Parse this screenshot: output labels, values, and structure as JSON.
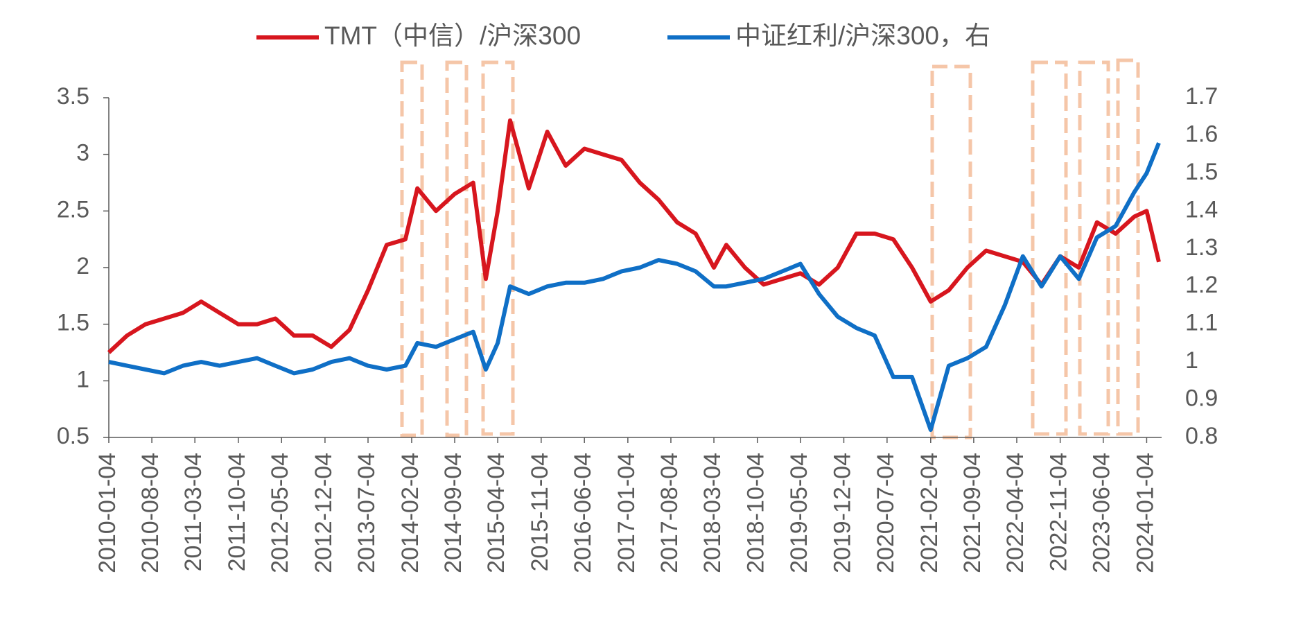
{
  "chart_data": {
    "type": "line",
    "x": [
      "2010-01-04",
      "2010-04-04",
      "2010-07-04",
      "2010-10-04",
      "2011-01-04",
      "2011-04-04",
      "2011-07-04",
      "2011-10-04",
      "2012-01-04",
      "2012-04-04",
      "2012-07-04",
      "2012-10-04",
      "2013-01-04",
      "2013-04-04",
      "2013-07-04",
      "2013-10-04",
      "2014-01-04",
      "2014-03-04",
      "2014-06-04",
      "2014-09-04",
      "2014-12-04",
      "2015-02-04",
      "2015-04-04",
      "2015-06-04",
      "2015-09-04",
      "2015-12-04",
      "2016-03-04",
      "2016-06-04",
      "2016-09-04",
      "2016-12-04",
      "2017-03-04",
      "2017-06-04",
      "2017-09-04",
      "2017-12-04",
      "2018-03-04",
      "2018-05-04",
      "2018-08-04",
      "2018-11-04",
      "2019-02-04",
      "2019-05-04",
      "2019-08-04",
      "2019-11-04",
      "2020-02-04",
      "2020-05-04",
      "2020-08-04",
      "2020-11-04",
      "2021-02-04",
      "2021-05-04",
      "2021-08-04",
      "2021-11-04",
      "2022-02-04",
      "2022-05-04",
      "2022-08-04",
      "2022-11-04",
      "2023-02-04",
      "2023-05-04",
      "2023-08-04",
      "2023-11-04",
      "2024-01-04",
      "2024-03-04"
    ],
    "series": [
      {
        "name": "TMT（中信）/沪深300",
        "color": "#d7161e",
        "values": [
          1.25,
          1.4,
          1.5,
          1.55,
          1.6,
          1.7,
          1.6,
          1.5,
          1.5,
          1.55,
          1.4,
          1.4,
          1.3,
          1.45,
          1.8,
          2.2,
          2.25,
          2.7,
          2.5,
          2.65,
          2.75,
          1.9,
          2.5,
          3.3,
          2.7,
          3.2,
          2.9,
          3.05,
          3.0,
          2.95,
          2.75,
          2.6,
          2.4,
          2.3,
          2.0,
          2.2,
          2.0,
          1.85,
          1.9,
          1.95,
          1.85,
          2.0,
          2.3,
          2.3,
          2.25,
          2.0,
          1.7,
          1.8,
          2.0,
          2.15,
          2.1,
          2.05,
          1.85,
          2.1,
          2.0,
          2.4,
          2.3,
          2.45,
          2.5,
          2.05
        ]
      },
      {
        "name": "中证红利/沪深300，右",
        "color": "#0f6fc6",
        "axis": "y2",
        "values": [
          1.0,
          0.99,
          0.98,
          0.97,
          0.99,
          1.0,
          0.99,
          1.0,
          1.01,
          0.99,
          0.97,
          0.98,
          1.0,
          1.01,
          0.99,
          0.98,
          0.99,
          1.05,
          1.04,
          1.06,
          1.08,
          0.98,
          1.05,
          1.2,
          1.18,
          1.2,
          1.21,
          1.21,
          1.22,
          1.24,
          1.25,
          1.27,
          1.26,
          1.24,
          1.2,
          1.2,
          1.21,
          1.22,
          1.24,
          1.26,
          1.18,
          1.12,
          1.09,
          1.07,
          0.96,
          0.96,
          0.82,
          0.99,
          1.01,
          1.04,
          1.15,
          1.28,
          1.2,
          1.28,
          1.22,
          1.33,
          1.36,
          1.45,
          1.5,
          1.58
        ]
      }
    ],
    "xlim": [
      "2010-01-04",
      "2024-03-04"
    ],
    "xticks": [
      "2010-01-04",
      "2010-08-04",
      "2011-03-04",
      "2011-10-04",
      "2012-05-04",
      "2012-12-04",
      "2013-07-04",
      "2014-02-04",
      "2014-09-04",
      "2015-04-04",
      "2015-11-04",
      "2016-06-04",
      "2017-01-04",
      "2017-08-04",
      "2018-03-04",
      "2018-10-04",
      "2019-05-04",
      "2019-12-04",
      "2020-07-04",
      "2021-02-04",
      "2021-09-04",
      "2022-04-04",
      "2022-11-04",
      "2023-06-04",
      "2024-01-04"
    ],
    "ylim": [
      0.5,
      3.5
    ],
    "yticks": [
      0.5,
      1,
      1.5,
      2,
      2.5,
      3,
      3.5
    ],
    "y2lim": [
      0.8,
      1.7
    ],
    "y2ticks": [
      0.8,
      0.9,
      1,
      1.1,
      1.2,
      1.3,
      1.4,
      1.5,
      1.6,
      1.7
    ],
    "legend": "top"
  }
}
